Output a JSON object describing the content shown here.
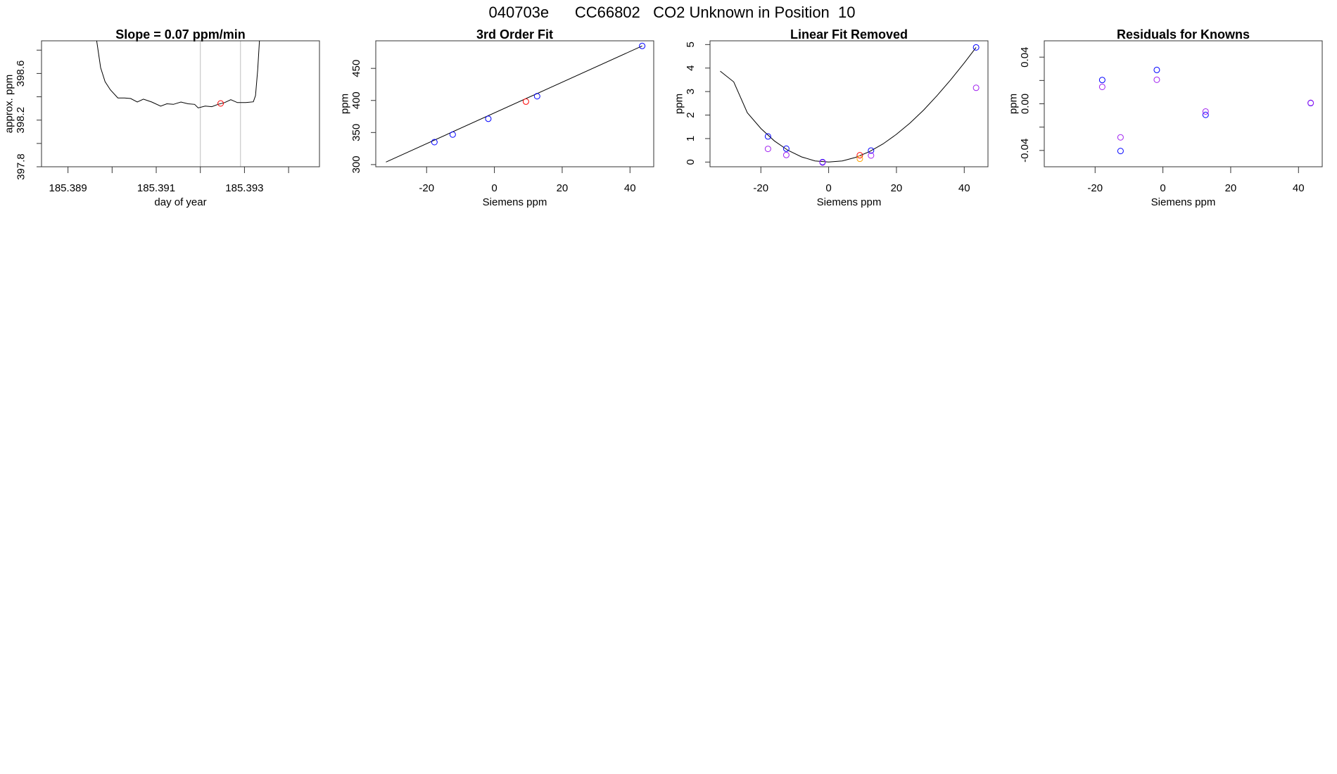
{
  "figure": {
    "title": "040703e      CC66802   CO2 Unknown in Position  10"
  },
  "colors": {
    "blue": "#0000ff",
    "purple": "#a020f0",
    "red": "#ff0000",
    "orange": "#ffa500",
    "line": "#000000",
    "grey": "#bebebe"
  },
  "chart_data": [
    {
      "type": "line",
      "title": "Slope =  0.07  ppm/min",
      "xlabel": "day of year",
      "ylabel": "approx. ppm",
      "xlim": [
        185.3884,
        185.3947
      ],
      "ylim": [
        397.8,
        398.88
      ],
      "xticks": [
        185.389,
        185.39,
        185.391,
        185.392,
        185.393,
        185.394
      ],
      "xtick_labels": [
        "185.389",
        "",
        "185.391",
        "",
        "185.393",
        ""
      ],
      "yticks": [
        397.8,
        398.0,
        398.2,
        398.4,
        398.6,
        398.8
      ],
      "ytick_labels": [
        "397.8",
        "",
        "398.2",
        "",
        "398.6",
        ""
      ],
      "vlines": [
        185.392,
        185.39291
      ],
      "series": [
        {
          "kind": "line",
          "color": "line",
          "points": [
            [
              185.38965,
              398.88
            ],
            [
              185.38974,
              398.65
            ],
            [
              185.38984,
              398.53
            ],
            [
              185.38996,
              398.46
            ],
            [
              185.39013,
              398.39
            ],
            [
              185.39028,
              398.39
            ],
            [
              185.39042,
              398.385
            ],
            [
              185.39057,
              398.355
            ],
            [
              185.39071,
              398.38
            ],
            [
              185.3909,
              398.355
            ],
            [
              185.3911,
              398.32
            ],
            [
              185.39124,
              398.34
            ],
            [
              185.39139,
              398.335
            ],
            [
              185.39156,
              398.355
            ],
            [
              185.39172,
              398.34
            ],
            [
              185.39187,
              398.335
            ],
            [
              185.39195,
              398.305
            ],
            [
              185.39211,
              398.32
            ],
            [
              185.39226,
              398.315
            ],
            [
              185.3924,
              398.335
            ],
            [
              185.39255,
              398.35
            ],
            [
              185.39269,
              398.375
            ],
            [
              185.39284,
              398.35
            ],
            [
              185.39303,
              398.35
            ],
            [
              185.3932,
              398.357
            ],
            [
              185.39325,
              398.41
            ],
            [
              185.3933,
              398.63
            ],
            [
              185.39334,
              398.88
            ]
          ]
        },
        {
          "kind": "points",
          "color": "red",
          "points": [
            [
              185.39246,
              398.343
            ]
          ]
        }
      ]
    },
    {
      "type": "scatter",
      "title": "3rd Order Fit",
      "xlabel": "Siemens ppm",
      "ylabel": "ppm",
      "xlim": [
        -35,
        47
      ],
      "ylim": [
        296.6,
        493
      ],
      "xticks": [
        -20,
        0,
        20,
        40
      ],
      "xtick_labels": [
        "-20",
        "0",
        "20",
        "40"
      ],
      "yticks": [
        300,
        350,
        400,
        450
      ],
      "ytick_labels": [
        "300",
        "350",
        "400",
        "450"
      ],
      "series": [
        {
          "kind": "line",
          "color": "line",
          "points": [
            [
              -32,
              304
            ],
            [
              43.6,
              485
            ]
          ]
        },
        {
          "kind": "points",
          "color": "blue",
          "points": [
            [
              -17.7,
              335
            ],
            [
              -12.3,
              346.8
            ],
            [
              -1.8,
              371.4
            ],
            [
              12.6,
              406.6
            ],
            [
              43.6,
              485
            ]
          ]
        },
        {
          "kind": "points",
          "color": "red",
          "points": [
            [
              9.3,
              398.2
            ]
          ]
        }
      ]
    },
    {
      "type": "scatter",
      "title": "Linear Fit Removed",
      "xlabel": "Siemens ppm",
      "ylabel": "ppm",
      "xlim": [
        -35,
        47
      ],
      "ylim": [
        -0.2,
        5.16
      ],
      "xticks": [
        -20,
        0,
        20,
        40
      ],
      "xtick_labels": [
        "-20",
        "0",
        "20",
        "40"
      ],
      "yticks": [
        0,
        1,
        2,
        3,
        4,
        5
      ],
      "ytick_labels": [
        "0",
        "1",
        "2",
        "3",
        "4",
        "5"
      ],
      "series": [
        {
          "kind": "line",
          "color": "line",
          "points": [
            [
              -32,
              3.87
            ],
            [
              -28,
              3.41
            ],
            [
              -24,
              2.1
            ],
            [
              -20,
              1.43
            ],
            [
              -16,
              0.9
            ],
            [
              -12,
              0.5
            ],
            [
              -8,
              0.22
            ],
            [
              -4,
              0.05
            ],
            [
              0,
              0
            ],
            [
              4,
              0.05
            ],
            [
              8,
              0.2
            ],
            [
              12,
              0.44
            ],
            [
              16,
              0.77
            ],
            [
              20,
              1.18
            ],
            [
              24,
              1.66
            ],
            [
              28,
              2.21
            ],
            [
              32,
              2.83
            ],
            [
              36,
              3.5
            ],
            [
              40,
              4.22
            ],
            [
              43.5,
              4.88
            ]
          ]
        },
        {
          "kind": "points",
          "color": "blue",
          "points": [
            [
              -17.9,
              1.09
            ],
            [
              -12.5,
              0.57
            ],
            [
              -1.8,
              0.0
            ],
            [
              12.5,
              0.49
            ],
            [
              43.5,
              4.88
            ]
          ]
        },
        {
          "kind": "points",
          "color": "purple",
          "points": [
            [
              -17.9,
              0.56
            ],
            [
              -12.5,
              0.3
            ],
            [
              -1.8,
              -0.02
            ],
            [
              12.5,
              0.28
            ],
            [
              43.5,
              3.16
            ]
          ]
        },
        {
          "kind": "points",
          "color": "red",
          "points": [
            [
              9.2,
              0.29
            ]
          ]
        },
        {
          "kind": "points",
          "color": "orange",
          "points": [
            [
              9.2,
              0.14
            ]
          ]
        }
      ]
    },
    {
      "type": "scatter",
      "title": "Residuals for Knowns",
      "xlabel": "Siemens ppm",
      "ylabel": "ppm",
      "xlim": [
        -35,
        47
      ],
      "ylim": [
        -0.054,
        0.054
      ],
      "xticks": [
        -20,
        0,
        20,
        40
      ],
      "xtick_labels": [
        "-20",
        "0",
        "20",
        "40"
      ],
      "yticks": [
        -0.04,
        -0.02,
        0.0,
        0.02,
        0.04
      ],
      "ytick_labels": [
        "-0.04",
        "",
        "0.00",
        "",
        "0.04"
      ],
      "series": [
        {
          "kind": "points",
          "color": "blue",
          "points": [
            [
              -17.9,
              0.0204
            ],
            [
              -12.5,
              -0.0405
            ],
            [
              -1.8,
              0.029
            ],
            [
              12.6,
              -0.0095
            ],
            [
              43.6,
              0.0006
            ]
          ]
        },
        {
          "kind": "points",
          "color": "purple",
          "points": [
            [
              -17.9,
              0.0145
            ],
            [
              -12.5,
              -0.0288
            ],
            [
              -1.8,
              0.0206
            ],
            [
              12.6,
              -0.0066
            ],
            [
              43.6,
              0.0008
            ]
          ]
        }
      ]
    }
  ]
}
